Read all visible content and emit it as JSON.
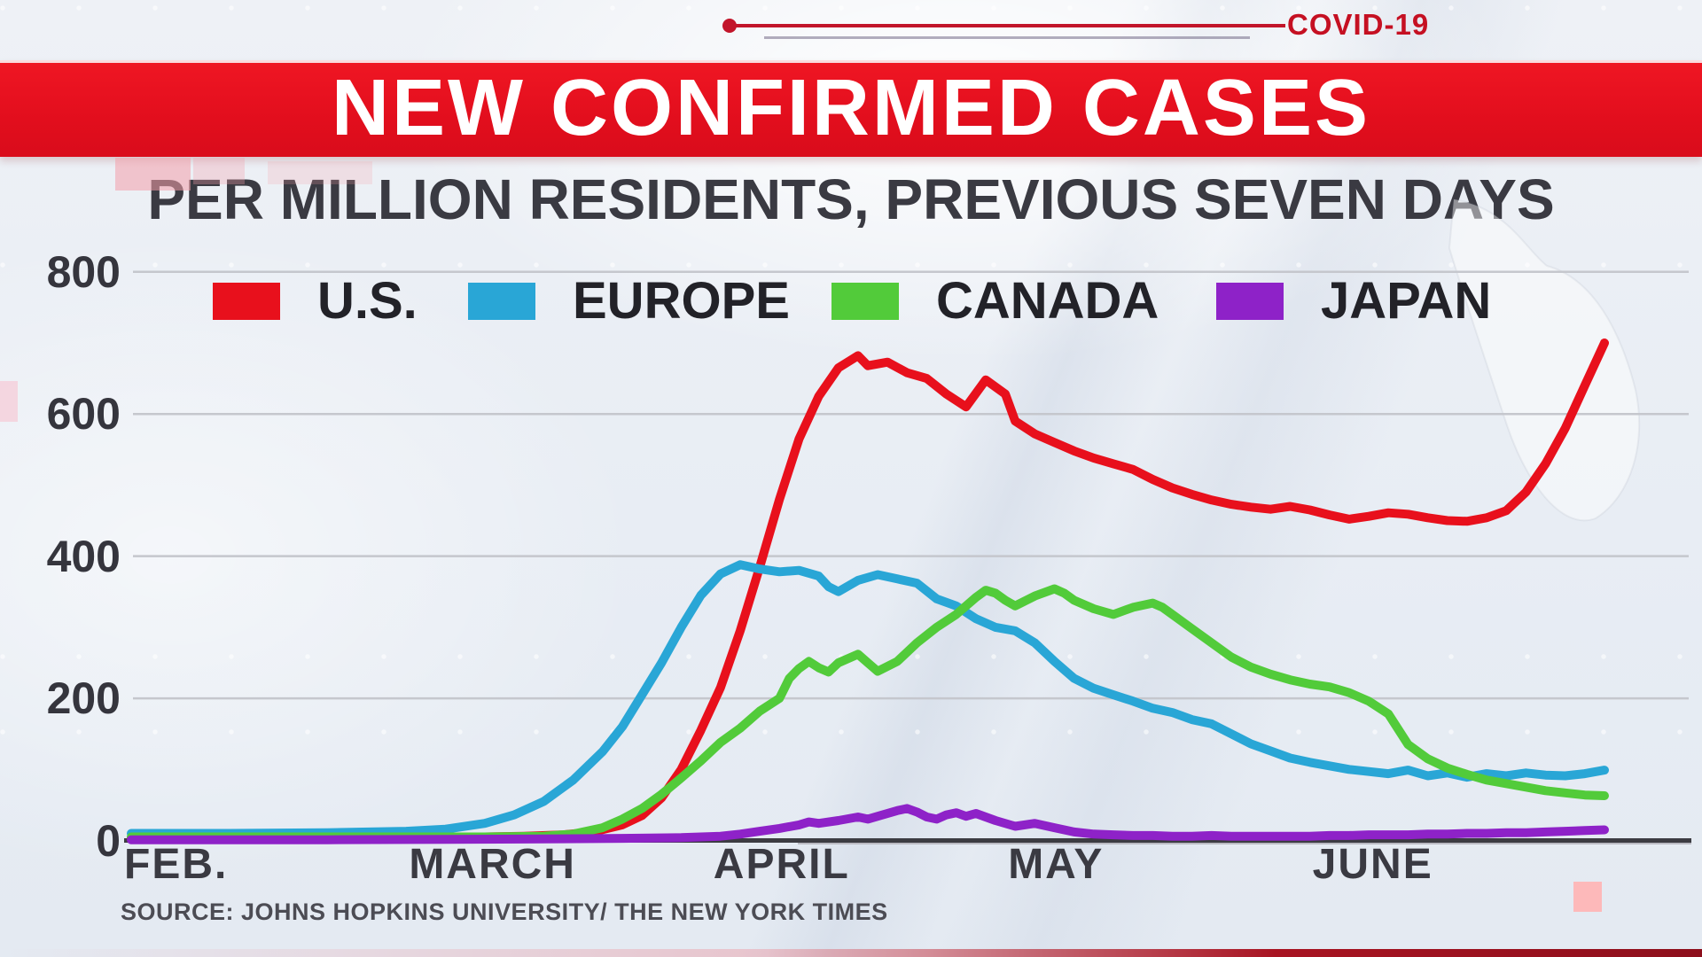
{
  "kicker": {
    "label": "COVID-19"
  },
  "banner": {
    "title": "NEW CONFIRMED CASES"
  },
  "subtitle": "PER MILLION RESIDENTS, PREVIOUS SEVEN DAYS",
  "source_note": "SOURCE: JOHNS HOPKINS UNIVERSITY/ THE NEW YORK TIMES",
  "colors": {
    "banner_red": "#e20e1d",
    "kicker_red": "#c51022",
    "grid": "#c5c7cd",
    "axis": "#3c3c42",
    "label_dark": "#35353d",
    "us_red": "#e8101c",
    "europe_blue": "#29a6d6",
    "canada_green": "#52cb3a",
    "japan_purple": "#8e22c8"
  },
  "chart_data": {
    "type": "line",
    "title": "NEW CONFIRMED CASES",
    "subtitle": "PER MILLION RESIDENTS, PREVIOUS SEVEN DAYS",
    "grid": "horizontal",
    "legend_position": "top",
    "x_axis": {
      "unit": "days since Feb 1",
      "range": [
        0,
        150
      ],
      "months": [
        {
          "label": "FEB.",
          "day": 0
        },
        {
          "label": "MARCH",
          "day": 29
        },
        {
          "label": "APRIL",
          "day": 60
        },
        {
          "label": "MAY",
          "day": 90
        },
        {
          "label": "JUNE",
          "day": 121
        }
      ]
    },
    "y_axis": {
      "ticks": [
        800,
        600,
        400,
        200,
        0
      ],
      "range": [
        0,
        800
      ]
    },
    "series": [
      {
        "name": "U.S.",
        "color": "#e8101c",
        "points": [
          [
            0,
            3
          ],
          [
            14,
            3
          ],
          [
            28,
            4
          ],
          [
            36,
            5
          ],
          [
            40,
            6
          ],
          [
            44,
            8
          ],
          [
            47,
            12
          ],
          [
            50,
            22
          ],
          [
            52,
            35
          ],
          [
            54,
            60
          ],
          [
            56,
            100
          ],
          [
            58,
            155
          ],
          [
            60,
            215
          ],
          [
            62,
            295
          ],
          [
            64,
            385
          ],
          [
            66,
            480
          ],
          [
            68,
            565
          ],
          [
            70,
            625
          ],
          [
            72,
            665
          ],
          [
            74,
            682
          ],
          [
            75,
            668
          ],
          [
            77,
            673
          ],
          [
            79,
            658
          ],
          [
            81,
            650
          ],
          [
            83,
            628
          ],
          [
            85,
            610
          ],
          [
            87,
            648
          ],
          [
            89,
            628
          ],
          [
            90,
            590
          ],
          [
            92,
            572
          ],
          [
            94,
            560
          ],
          [
            96,
            548
          ],
          [
            98,
            538
          ],
          [
            100,
            530
          ],
          [
            102,
            522
          ],
          [
            104,
            508
          ],
          [
            106,
            496
          ],
          [
            108,
            487
          ],
          [
            110,
            479
          ],
          [
            112,
            473
          ],
          [
            114,
            469
          ],
          [
            116,
            466
          ],
          [
            118,
            470
          ],
          [
            120,
            465
          ],
          [
            122,
            458
          ],
          [
            124,
            452
          ],
          [
            126,
            456
          ],
          [
            128,
            461
          ],
          [
            130,
            459
          ],
          [
            132,
            454
          ],
          [
            134,
            450
          ],
          [
            136,
            449
          ],
          [
            138,
            454
          ],
          [
            140,
            464
          ],
          [
            142,
            490
          ],
          [
            144,
            530
          ],
          [
            146,
            580
          ],
          [
            148,
            640
          ],
          [
            150,
            700
          ]
        ]
      },
      {
        "name": "EUROPE",
        "color": "#29a6d6",
        "points": [
          [
            0,
            10
          ],
          [
            10,
            10
          ],
          [
            20,
            11
          ],
          [
            28,
            13
          ],
          [
            32,
            16
          ],
          [
            36,
            24
          ],
          [
            39,
            36
          ],
          [
            42,
            55
          ],
          [
            45,
            85
          ],
          [
            48,
            125
          ],
          [
            50,
            160
          ],
          [
            52,
            205
          ],
          [
            54,
            250
          ],
          [
            56,
            300
          ],
          [
            58,
            345
          ],
          [
            60,
            375
          ],
          [
            62,
            388
          ],
          [
            64,
            382
          ],
          [
            66,
            378
          ],
          [
            68,
            380
          ],
          [
            70,
            372
          ],
          [
            71,
            357
          ],
          [
            72,
            350
          ],
          [
            74,
            366
          ],
          [
            76,
            374
          ],
          [
            78,
            368
          ],
          [
            80,
            362
          ],
          [
            82,
            340
          ],
          [
            84,
            330
          ],
          [
            86,
            312
          ],
          [
            88,
            300
          ],
          [
            90,
            295
          ],
          [
            92,
            278
          ],
          [
            94,
            252
          ],
          [
            96,
            228
          ],
          [
            98,
            214
          ],
          [
            100,
            205
          ],
          [
            102,
            196
          ],
          [
            104,
            186
          ],
          [
            106,
            180
          ],
          [
            108,
            170
          ],
          [
            110,
            164
          ],
          [
            112,
            150
          ],
          [
            114,
            136
          ],
          [
            116,
            126
          ],
          [
            118,
            116
          ],
          [
            120,
            110
          ],
          [
            122,
            105
          ],
          [
            124,
            100
          ],
          [
            126,
            97
          ],
          [
            128,
            94
          ],
          [
            130,
            99
          ],
          [
            132,
            91
          ],
          [
            134,
            95
          ],
          [
            136,
            89
          ],
          [
            138,
            94
          ],
          [
            140,
            91
          ],
          [
            142,
            95
          ],
          [
            144,
            92
          ],
          [
            146,
            91
          ],
          [
            148,
            94
          ],
          [
            150,
            99
          ]
        ]
      },
      {
        "name": "CANADA",
        "color": "#52cb3a",
        "points": [
          [
            0,
            5
          ],
          [
            20,
            5
          ],
          [
            36,
            5
          ],
          [
            42,
            6
          ],
          [
            45,
            9
          ],
          [
            48,
            18
          ],
          [
            50,
            30
          ],
          [
            52,
            45
          ],
          [
            54,
            65
          ],
          [
            56,
            88
          ],
          [
            58,
            112
          ],
          [
            60,
            138
          ],
          [
            62,
            158
          ],
          [
            64,
            182
          ],
          [
            66,
            200
          ],
          [
            67,
            228
          ],
          [
            68,
            242
          ],
          [
            69,
            252
          ],
          [
            70,
            243
          ],
          [
            71,
            237
          ],
          [
            72,
            250
          ],
          [
            74,
            262
          ],
          [
            75,
            250
          ],
          [
            76,
            238
          ],
          [
            78,
            252
          ],
          [
            80,
            278
          ],
          [
            82,
            300
          ],
          [
            84,
            318
          ],
          [
            86,
            342
          ],
          [
            87,
            352
          ],
          [
            88,
            348
          ],
          [
            89,
            338
          ],
          [
            90,
            330
          ],
          [
            92,
            344
          ],
          [
            94,
            354
          ],
          [
            95,
            348
          ],
          [
            96,
            338
          ],
          [
            98,
            326
          ],
          [
            100,
            318
          ],
          [
            102,
            328
          ],
          [
            104,
            334
          ],
          [
            105,
            328
          ],
          [
            106,
            318
          ],
          [
            108,
            298
          ],
          [
            110,
            278
          ],
          [
            112,
            258
          ],
          [
            114,
            244
          ],
          [
            116,
            234
          ],
          [
            118,
            226
          ],
          [
            120,
            220
          ],
          [
            122,
            216
          ],
          [
            124,
            208
          ],
          [
            126,
            196
          ],
          [
            128,
            178
          ],
          [
            130,
            135
          ],
          [
            132,
            115
          ],
          [
            134,
            102
          ],
          [
            136,
            93
          ],
          [
            138,
            85
          ],
          [
            140,
            80
          ],
          [
            142,
            75
          ],
          [
            144,
            70
          ],
          [
            146,
            67
          ],
          [
            148,
            64
          ],
          [
            150,
            63
          ]
        ]
      },
      {
        "name": "JAPAN",
        "color": "#8e22c8",
        "points": [
          [
            0,
            1
          ],
          [
            20,
            1
          ],
          [
            40,
            2
          ],
          [
            50,
            3
          ],
          [
            56,
            4
          ],
          [
            60,
            6
          ],
          [
            62,
            9
          ],
          [
            64,
            13
          ],
          [
            66,
            17
          ],
          [
            68,
            22
          ],
          [
            69,
            26
          ],
          [
            70,
            24
          ],
          [
            72,
            28
          ],
          [
            74,
            33
          ],
          [
            75,
            30
          ],
          [
            76,
            34
          ],
          [
            78,
            42
          ],
          [
            79,
            45
          ],
          [
            80,
            40
          ],
          [
            81,
            33
          ],
          [
            82,
            30
          ],
          [
            83,
            36
          ],
          [
            84,
            39
          ],
          [
            85,
            34
          ],
          [
            86,
            38
          ],
          [
            88,
            28
          ],
          [
            90,
            20
          ],
          [
            92,
            24
          ],
          [
            94,
            18
          ],
          [
            96,
            12
          ],
          [
            98,
            9
          ],
          [
            100,
            8
          ],
          [
            102,
            7
          ],
          [
            104,
            7
          ],
          [
            106,
            6
          ],
          [
            108,
            6
          ],
          [
            110,
            7
          ],
          [
            112,
            6
          ],
          [
            114,
            6
          ],
          [
            116,
            6
          ],
          [
            118,
            6
          ],
          [
            120,
            6
          ],
          [
            122,
            7
          ],
          [
            124,
            7
          ],
          [
            126,
            8
          ],
          [
            128,
            8
          ],
          [
            130,
            8
          ],
          [
            132,
            9
          ],
          [
            134,
            9
          ],
          [
            136,
            10
          ],
          [
            138,
            10
          ],
          [
            140,
            11
          ],
          [
            142,
            11
          ],
          [
            144,
            12
          ],
          [
            146,
            13
          ],
          [
            148,
            14
          ],
          [
            150,
            15
          ]
        ]
      }
    ]
  }
}
